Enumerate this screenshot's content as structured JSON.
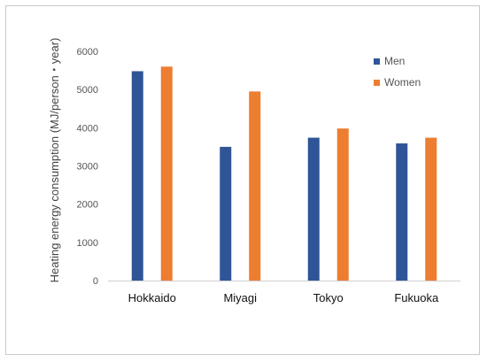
{
  "chart_data": {
    "type": "bar",
    "ylabel": "Heating energy consumption (MJ/person・year)",
    "xlabel": "",
    "ylim": [
      0,
      6000
    ],
    "yticks": [
      0,
      1000,
      2000,
      3000,
      4000,
      5000,
      6000
    ],
    "categories": [
      "Hokkaido",
      "Miyagi",
      "Tokyo",
      "Fukuoka"
    ],
    "series": [
      {
        "name": "Men",
        "color": "#2f5597",
        "values": [
          5480,
          3500,
          3740,
          3590
        ]
      },
      {
        "name": "Women",
        "color": "#ed7d31",
        "values": [
          5600,
          4950,
          3980,
          3740
        ]
      }
    ],
    "grid": false,
    "legend": "top-right"
  }
}
